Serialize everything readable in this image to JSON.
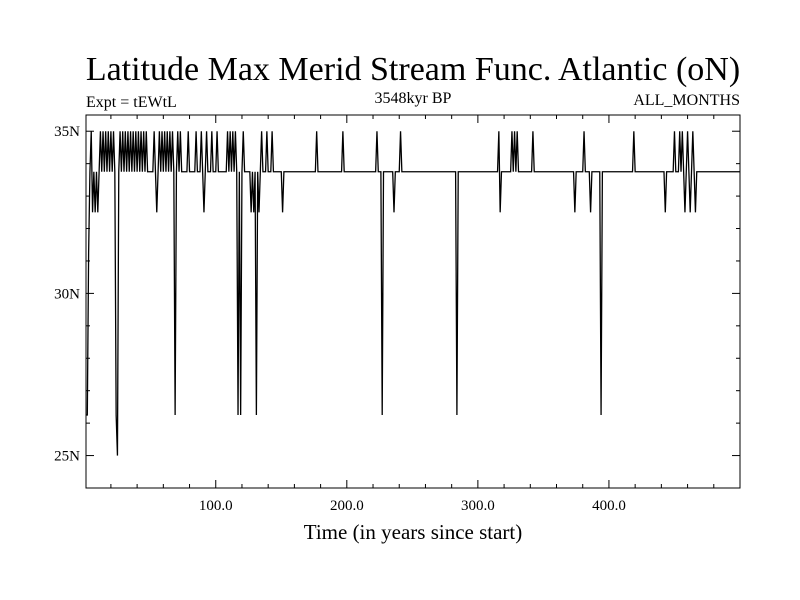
{
  "chart_data": {
    "type": "line",
    "title": "Latitude Max Merid Stream Func. Atlantic (oN)",
    "subtitle_left": "Expt = tEWtL",
    "subtitle_center": "3548kyr BP",
    "subtitle_right": "ALL_MONTHS",
    "xlabel": "Time (in years since start)",
    "ylabel": "",
    "xlim": [
      1,
      500
    ],
    "ylim": [
      24,
      35.5
    ],
    "x_major_ticks": [
      100,
      200,
      300,
      400
    ],
    "x_tick_labels": [
      "100.0",
      "200.0",
      "300.0",
      "400.0"
    ],
    "x_minor_step": 20,
    "y_major_ticks": [
      25,
      30,
      35
    ],
    "y_tick_labels": [
      "25N",
      "30N",
      "35N"
    ],
    "y_minor_step": 1,
    "grid": false,
    "legend": "none",
    "line_color": "#000000",
    "baseline": 33.75,
    "series": [
      {
        "points": [
          [
            1,
            26.25
          ],
          [
            2,
            26.25
          ],
          [
            3,
            31.25
          ],
          [
            4,
            33.75
          ],
          [
            5,
            35.0
          ],
          [
            6,
            32.5
          ],
          [
            7,
            33.75
          ],
          [
            8,
            32.5
          ],
          [
            9,
            33.75
          ],
          [
            10,
            32.5
          ],
          [
            11,
            33.75
          ],
          [
            12,
            35.0
          ],
          [
            13,
            33.75
          ],
          [
            14,
            35.0
          ],
          [
            15,
            33.75
          ],
          [
            16,
            35.0
          ],
          [
            17,
            33.75
          ],
          [
            18,
            35.0
          ],
          [
            19,
            33.75
          ],
          [
            20,
            35.0
          ],
          [
            21,
            33.75
          ],
          [
            22,
            35.0
          ],
          [
            23,
            33.75
          ],
          [
            24,
            26.25
          ],
          [
            25,
            25.0
          ],
          [
            26,
            33.75
          ],
          [
            27,
            35.0
          ],
          [
            28,
            33.75
          ],
          [
            29,
            35.0
          ],
          [
            30,
            33.75
          ],
          [
            31,
            35.0
          ],
          [
            32,
            33.75
          ],
          [
            33,
            35.0
          ],
          [
            34,
            33.75
          ],
          [
            35,
            35.0
          ],
          [
            36,
            33.75
          ],
          [
            37,
            35.0
          ],
          [
            38,
            33.75
          ],
          [
            39,
            35.0
          ],
          [
            40,
            33.75
          ],
          [
            41,
            35.0
          ],
          [
            42,
            33.75
          ],
          [
            43,
            35.0
          ],
          [
            44,
            33.75
          ],
          [
            45,
            35.0
          ],
          [
            46,
            33.75
          ],
          [
            47,
            35.0
          ],
          [
            48,
            33.75
          ],
          [
            52,
            33.75
          ],
          [
            53,
            35.0
          ],
          [
            54,
            33.75
          ],
          [
            55,
            32.5
          ],
          [
            56,
            33.75
          ],
          [
            57,
            35.0
          ],
          [
            58,
            33.75
          ],
          [
            59,
            35.0
          ],
          [
            60,
            33.75
          ],
          [
            61,
            35.0
          ],
          [
            62,
            33.75
          ],
          [
            63,
            35.0
          ],
          [
            64,
            33.75
          ],
          [
            65,
            35.0
          ],
          [
            66,
            33.75
          ],
          [
            67,
            35.0
          ],
          [
            68,
            33.75
          ],
          [
            69,
            26.25
          ],
          [
            70,
            33.75
          ],
          [
            71,
            35.0
          ],
          [
            72,
            33.75
          ],
          [
            73,
            35.0
          ],
          [
            74,
            33.75
          ],
          [
            78,
            33.75
          ],
          [
            79,
            35.0
          ],
          [
            80,
            33.75
          ],
          [
            84,
            33.75
          ],
          [
            85,
            35.0
          ],
          [
            86,
            33.75
          ],
          [
            88,
            33.75
          ],
          [
            89,
            35.0
          ],
          [
            90,
            33.75
          ],
          [
            91,
            32.5
          ],
          [
            92,
            33.75
          ],
          [
            93,
            35.0
          ],
          [
            94,
            33.75
          ],
          [
            96,
            33.75
          ],
          [
            97,
            35.0
          ],
          [
            98,
            33.75
          ],
          [
            100,
            33.75
          ],
          [
            101,
            35.0
          ],
          [
            102,
            33.75
          ],
          [
            108,
            33.75
          ],
          [
            109,
            35.0
          ],
          [
            110,
            33.75
          ],
          [
            111,
            35.0
          ],
          [
            112,
            33.75
          ],
          [
            113,
            35.0
          ],
          [
            114,
            33.75
          ],
          [
            115,
            35.0
          ],
          [
            116,
            33.75
          ],
          [
            117,
            26.25
          ],
          [
            118,
            33.75
          ],
          [
            119,
            26.25
          ],
          [
            120,
            33.75
          ],
          [
            121,
            35.0
          ],
          [
            122,
            33.75
          ],
          [
            126,
            33.75
          ],
          [
            127,
            32.5
          ],
          [
            128,
            33.75
          ],
          [
            129,
            32.5
          ],
          [
            130,
            33.75
          ],
          [
            131,
            26.25
          ],
          [
            132,
            33.75
          ],
          [
            133,
            32.5
          ],
          [
            134,
            33.75
          ],
          [
            135,
            35.0
          ],
          [
            136,
            33.75
          ],
          [
            138,
            33.75
          ],
          [
            139,
            35.0
          ],
          [
            140,
            33.75
          ],
          [
            142,
            33.75
          ],
          [
            143,
            35.0
          ],
          [
            144,
            33.75
          ],
          [
            150,
            33.75
          ],
          [
            151,
            32.5
          ],
          [
            152,
            33.75
          ],
          [
            176,
            33.75
          ],
          [
            177,
            35.0
          ],
          [
            178,
            33.75
          ],
          [
            196,
            33.75
          ],
          [
            197,
            35.0
          ],
          [
            198,
            33.75
          ],
          [
            222,
            33.75
          ],
          [
            223,
            35.0
          ],
          [
            224,
            33.75
          ],
          [
            226,
            33.75
          ],
          [
            227,
            26.25
          ],
          [
            228,
            33.75
          ],
          [
            235,
            33.75
          ],
          [
            236,
            32.5
          ],
          [
            237,
            33.75
          ],
          [
            240,
            33.75
          ],
          [
            241,
            35.0
          ],
          [
            242,
            33.75
          ],
          [
            283,
            33.75
          ],
          [
            284,
            26.25
          ],
          [
            285,
            33.75
          ],
          [
            315,
            33.75
          ],
          [
            316,
            35.0
          ],
          [
            317,
            32.5
          ],
          [
            318,
            33.75
          ],
          [
            325,
            33.75
          ],
          [
            326,
            35.0
          ],
          [
            327,
            33.75
          ],
          [
            328,
            35.0
          ],
          [
            329,
            33.75
          ],
          [
            330,
            35.0
          ],
          [
            331,
            33.75
          ],
          [
            341,
            33.75
          ],
          [
            342,
            35.0
          ],
          [
            343,
            33.75
          ],
          [
            373,
            33.75
          ],
          [
            374,
            32.5
          ],
          [
            375,
            33.75
          ],
          [
            380,
            33.75
          ],
          [
            381,
            35.0
          ],
          [
            382,
            33.75
          ],
          [
            385,
            33.75
          ],
          [
            386,
            32.5
          ],
          [
            387,
            33.75
          ],
          [
            393,
            33.75
          ],
          [
            394,
            26.25
          ],
          [
            395,
            33.75
          ],
          [
            418,
            33.75
          ],
          [
            419,
            35.0
          ],
          [
            420,
            33.75
          ],
          [
            442,
            33.75
          ],
          [
            443,
            32.5
          ],
          [
            444,
            33.75
          ],
          [
            449,
            33.75
          ],
          [
            450,
            35.0
          ],
          [
            451,
            33.75
          ],
          [
            453,
            33.75
          ],
          [
            454,
            35.0
          ],
          [
            455,
            33.75
          ],
          [
            456,
            35.0
          ],
          [
            457,
            33.75
          ],
          [
            458,
            32.5
          ],
          [
            459,
            33.75
          ],
          [
            460,
            35.0
          ],
          [
            461,
            33.75
          ],
          [
            462,
            32.5
          ],
          [
            463,
            33.75
          ],
          [
            464,
            35.0
          ],
          [
            465,
            33.75
          ],
          [
            466,
            32.5
          ],
          [
            467,
            33.75
          ],
          [
            500,
            33.75
          ]
        ]
      }
    ]
  }
}
